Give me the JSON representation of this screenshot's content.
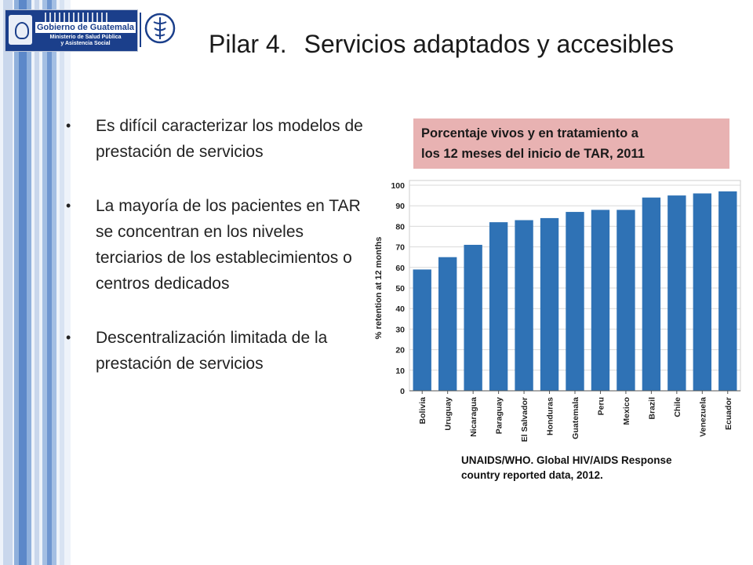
{
  "header": {
    "logo_gov": "Gobierno de Guatemala",
    "logo_ministry_line1": "Ministerio de Salud Pública",
    "logo_ministry_line2": "y Asistencia Social",
    "title_part1": "Pilar 4.",
    "title_part2": "Servicios adaptados y accesibles"
  },
  "bullets": [
    "Es difícil caracterizar los modelos de prestación de servicios",
    "La mayoría de los pacientes en TAR se concentran en los niveles terciarios de los establecimientos o centros dedicados",
    "Descentralización limitada de la prestación de servicios"
  ],
  "caption": {
    "line1": "Porcentaje vivos y en tratamiento a",
    "line2": "los  12 meses del inicio de TAR, 2011"
  },
  "source": {
    "line1": "UNAIDS/WHO. Global HIV/AIDS Response",
    "line2": "country reported data,  2012."
  },
  "chart_data": {
    "type": "bar",
    "categories": [
      "Bolivia",
      "Uruguay",
      "Nicaragua",
      "Paraguay",
      "El Salvador",
      "Honduras",
      "Guatemala",
      "Peru",
      "Mexico",
      "Brazil",
      "Chile",
      "Venezuela",
      "Ecuador"
    ],
    "values": [
      59,
      65,
      71,
      82,
      83,
      84,
      87,
      88,
      88,
      94,
      95,
      96,
      97
    ],
    "ylabel": "% retention at 12 months",
    "ylim": [
      0,
      100
    ],
    "yticks": [
      0,
      10,
      20,
      30,
      40,
      50,
      60,
      70,
      80,
      90,
      100
    ],
    "grid": true,
    "bar_color": "#2f72b5"
  },
  "colors": {
    "stripe_light": "#c9d7ec",
    "stripe_mid": "#8fb0dc",
    "stripe_dark": "#5c88c9",
    "caption_bg": "#e8b2b2",
    "logo_blue": "#1b3f8b"
  }
}
